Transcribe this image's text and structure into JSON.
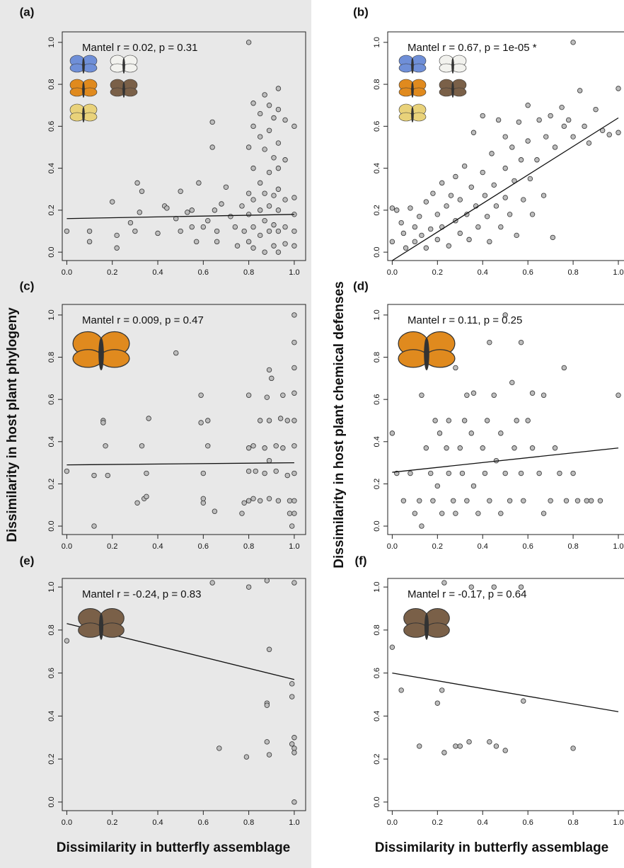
{
  "chart_data": [
    {
      "type": "scatter",
      "panel": "(a)",
      "annotation": "Mantel r = 0.02, p = 0.31",
      "ylabel": "Dissimilarity in host plant phylogeny",
      "x": [
        0,
        0.1,
        0.1,
        0.2,
        0.22,
        0.22,
        0.28,
        0.3,
        0.31,
        0.32,
        0.33,
        0.4,
        0.43,
        0.44,
        0.48,
        0.5,
        0.5,
        0.53,
        0.55,
        0.55,
        0.57,
        0.58,
        0.6,
        0.62,
        0.64,
        0.64,
        0.65,
        0.66,
        0.66,
        0.68,
        0.7,
        0.72,
        0.74,
        0.75,
        0.77,
        0.78,
        0.8,
        0.8,
        0.8,
        0.8,
        0.8,
        0.82,
        0.82,
        0.82,
        0.82,
        0.82,
        0.82,
        0.85,
        0.85,
        0.85,
        0.85,
        0.85,
        0.87,
        0.87,
        0.87,
        0.87,
        0.87,
        0.89,
        0.89,
        0.89,
        0.89,
        0.89,
        0.91,
        0.91,
        0.91,
        0.91,
        0.91,
        0.93,
        0.93,
        0.93,
        0.93,
        0.93,
        0.93,
        0.93,
        0.93,
        0.96,
        0.96,
        0.96,
        0.96,
        0.96,
        1,
        1,
        1,
        1,
        1
      ],
      "y": [
        0.1,
        0.1,
        0.05,
        0.24,
        0.08,
        0.02,
        0.14,
        0.1,
        0.33,
        0.19,
        0.29,
        0.09,
        0.22,
        0.21,
        0.16,
        0.29,
        0.1,
        0.19,
        0.2,
        0.12,
        0.05,
        0.33,
        0.12,
        0.15,
        0.62,
        0.5,
        0.2,
        0.1,
        0.05,
        0.23,
        0.31,
        0.17,
        0.12,
        0.03,
        0.22,
        0.1,
        1,
        0.5,
        0.28,
        0.18,
        0.05,
        0.71,
        0.6,
        0.4,
        0.25,
        0.12,
        0.02,
        0.66,
        0.55,
        0.33,
        0.2,
        0.08,
        0.75,
        0.49,
        0.28,
        0.15,
        0,
        0.7,
        0.58,
        0.38,
        0.22,
        0.1,
        0.64,
        0.45,
        0.27,
        0.13,
        0.03,
        0.78,
        0.68,
        0.52,
        0.4,
        0.3,
        0.2,
        0.1,
        0,
        0.63,
        0.44,
        0.25,
        0.12,
        0.04,
        0.6,
        0.26,
        0.18,
        0.1,
        0.03
      ],
      "fit": {
        "x": [
          0,
          1
        ],
        "y": [
          0.16,
          0.18
        ]
      },
      "xlim": [
        -0.02,
        1.05
      ],
      "ylim": [
        -0.04,
        1.05
      ],
      "xticks": [
        {
          "value": 0,
          "label": "0.0"
        },
        0.2,
        0.4,
        0.6,
        0.8,
        {
          "value": 1,
          "label": "1.0"
        }
      ],
      "yticks": [
        {
          "value": 0,
          "label": "0.0"
        },
        0.2,
        0.4,
        0.6,
        0.8,
        {
          "value": 1,
          "label": "1.0"
        }
      ]
    },
    {
      "type": "scatter",
      "panel": "(b)",
      "annotation": "Mantel r = 0.67, p = 1e-05 *",
      "ylabel": "Dissimilarity in host plant chemical defenses",
      "x": [
        0,
        0,
        0.02,
        0.04,
        0.05,
        0.06,
        0.08,
        0.1,
        0.1,
        0.12,
        0.13,
        0.15,
        0.15,
        0.17,
        0.18,
        0.2,
        0.2,
        0.22,
        0.22,
        0.24,
        0.25,
        0.26,
        0.28,
        0.28,
        0.3,
        0.3,
        0.32,
        0.33,
        0.34,
        0.35,
        0.36,
        0.37,
        0.38,
        0.4,
        0.4,
        0.41,
        0.42,
        0.43,
        0.44,
        0.45,
        0.46,
        0.47,
        0.48,
        0.5,
        0.5,
        0.5,
        0.52,
        0.53,
        0.54,
        0.55,
        0.56,
        0.57,
        0.58,
        0.6,
        0.6,
        0.61,
        0.62,
        0.64,
        0.65,
        0.67,
        0.68,
        0.7,
        0.71,
        0.72,
        0.75,
        0.76,
        0.78,
        0.8,
        0.8,
        0.83,
        0.85,
        0.87,
        0.9,
        0.93,
        0.96,
        1,
        1
      ],
      "y": [
        0.05,
        0.21,
        0.2,
        0.14,
        0.09,
        0.02,
        0.21,
        0.05,
        0.12,
        0.17,
        0.08,
        0.24,
        0.02,
        0.11,
        0.28,
        0.06,
        0.18,
        0.33,
        0.12,
        0.22,
        0.03,
        0.27,
        0.15,
        0.36,
        0.09,
        0.25,
        0.41,
        0.18,
        0.06,
        0.31,
        0.57,
        0.22,
        0.12,
        0.65,
        0.38,
        0.27,
        0.17,
        0.05,
        0.47,
        0.32,
        0.22,
        0.63,
        0.12,
        0.55,
        0.4,
        0.26,
        0.18,
        0.5,
        0.34,
        0.08,
        0.62,
        0.44,
        0.25,
        0.7,
        0.53,
        0.35,
        0.18,
        0.44,
        0.63,
        0.27,
        0.55,
        0.65,
        0.07,
        0.5,
        0.69,
        0.6,
        0.63,
        1,
        0.55,
        0.77,
        0.6,
        0.52,
        0.68,
        0.58,
        0.56,
        0.78,
        0.57
      ],
      "fit": {
        "x": [
          0,
          1
        ],
        "y": [
          -0.04,
          0.64
        ]
      },
      "xlim": [
        -0.02,
        1.05
      ],
      "ylim": [
        -0.04,
        1.05
      ],
      "xticks": [
        {
          "value": 0,
          "label": "0.0"
        },
        0.2,
        0.4,
        0.6,
        0.8,
        {
          "value": 1,
          "label": "1.0"
        }
      ],
      "yticks": [
        {
          "value": 0,
          "label": "0.0"
        },
        0.2,
        0.4,
        0.6,
        0.8,
        {
          "value": 1,
          "label": "1.0"
        }
      ]
    },
    {
      "type": "scatter",
      "panel": "(c)",
      "annotation": "Mantel r = 0.009, p = 0.47",
      "x": [
        0,
        0.12,
        0.12,
        0.16,
        0.16,
        0.17,
        0.18,
        0.31,
        0.33,
        0.34,
        0.35,
        0.35,
        0.36,
        0.48,
        0.59,
        0.59,
        0.6,
        0.6,
        0.6,
        0.62,
        0.62,
        0.65,
        0.77,
        0.78,
        0.8,
        0.8,
        0.8,
        0.8,
        0.82,
        0.82,
        0.83,
        0.85,
        0.85,
        0.87,
        0.87,
        0.88,
        0.89,
        0.89,
        0.89,
        0.89,
        0.9,
        0.92,
        0.92,
        0.93,
        0.94,
        0.95,
        0.95,
        0.97,
        0.97,
        0.98,
        0.98,
        0.99,
        1,
        1,
        1,
        1,
        1,
        1,
        1,
        1,
        1
      ],
      "y": [
        0.26,
        0.24,
        0,
        0.5,
        0.49,
        0.38,
        0.24,
        0.11,
        0.38,
        0.13,
        0.25,
        0.14,
        0.51,
        0.82,
        0.62,
        0.49,
        0.25,
        0.11,
        0.13,
        0.5,
        0.38,
        0.07,
        0.06,
        0.11,
        0.62,
        0.37,
        0.26,
        0.12,
        0.38,
        0.13,
        0.26,
        0.5,
        0.12,
        0.37,
        0.25,
        0.61,
        0.74,
        0.5,
        0.31,
        0.13,
        0.7,
        0.26,
        0.38,
        0.12,
        0.51,
        0.62,
        0.37,
        0.5,
        0.24,
        0.12,
        0.06,
        0,
        1,
        0.87,
        0.75,
        0.63,
        0.5,
        0.38,
        0.25,
        0.12,
        0.06
      ],
      "fit": {
        "x": [
          0,
          1
        ],
        "y": [
          0.29,
          0.3
        ]
      },
      "xlim": [
        -0.02,
        1.05
      ],
      "ylim": [
        -0.04,
        1.05
      ],
      "xticks": [
        {
          "value": 0,
          "label": "0.0"
        },
        0.2,
        0.4,
        0.6,
        0.8,
        {
          "value": 1,
          "label": "1.0"
        }
      ],
      "yticks": [
        {
          "value": 0,
          "label": "0.0"
        },
        0.2,
        0.4,
        0.6,
        0.8,
        {
          "value": 1,
          "label": "1.0"
        }
      ]
    },
    {
      "type": "scatter",
      "panel": "(d)",
      "annotation": "Mantel r = 0.11, p = 0.25",
      "x": [
        0,
        0.02,
        0.05,
        0.08,
        0.1,
        0.12,
        0.13,
        0.13,
        0.15,
        0.17,
        0.18,
        0.19,
        0.2,
        0.21,
        0.22,
        0.24,
        0.25,
        0.25,
        0.27,
        0.28,
        0.28,
        0.3,
        0.31,
        0.32,
        0.33,
        0.33,
        0.35,
        0.36,
        0.36,
        0.38,
        0.4,
        0.41,
        0.42,
        0.43,
        0.43,
        0.45,
        0.46,
        0.48,
        0.48,
        0.5,
        0.5,
        0.52,
        0.53,
        0.54,
        0.55,
        0.57,
        0.57,
        0.58,
        0.6,
        0.62,
        0.62,
        0.65,
        0.67,
        0.67,
        0.7,
        0.72,
        0.74,
        0.76,
        0.77,
        0.8,
        0.82,
        0.86,
        0.88,
        0.92,
        1
      ],
      "y": [
        0.44,
        0.25,
        0.12,
        0.25,
        0.06,
        0.12,
        0.62,
        0,
        0.37,
        0.25,
        0.12,
        0.5,
        0.19,
        0.44,
        0.06,
        0.37,
        0.25,
        0.5,
        0.12,
        0.75,
        0.06,
        0.37,
        0.25,
        0.5,
        0.62,
        0.12,
        0.44,
        0.63,
        0.19,
        0.06,
        0.37,
        0.25,
        0.5,
        0.87,
        0.12,
        0.62,
        0.31,
        0.44,
        0.06,
        1,
        0.25,
        0.12,
        0.68,
        0.37,
        0.5,
        0.87,
        0.25,
        0.12,
        0.5,
        0.63,
        0.37,
        0.25,
        0.62,
        0.06,
        0.12,
        0.37,
        0.25,
        0.75,
        0.12,
        0.25,
        0.12,
        0.12,
        0.12,
        0.12,
        0.62
      ],
      "fit": {
        "x": [
          0,
          1
        ],
        "y": [
          0.255,
          0.37
        ]
      },
      "xlim": [
        -0.02,
        1.05
      ],
      "ylim": [
        -0.04,
        1.05
      ],
      "xticks": [
        {
          "value": 0,
          "label": "0.0"
        },
        0.2,
        0.4,
        0.6,
        0.8,
        {
          "value": 1,
          "label": "1.0"
        }
      ],
      "yticks": [
        {
          "value": 0,
          "label": "0.0"
        },
        0.2,
        0.4,
        0.6,
        0.8,
        {
          "value": 1,
          "label": "1.0"
        }
      ]
    },
    {
      "type": "scatter",
      "panel": "(e)",
      "annotation": "Mantel r = -0.24, p = 0.83",
      "xlabel": "Dissimilarity in butterfly assemblage",
      "x": [
        0,
        0.64,
        0.8,
        0.88,
        0.89,
        0.67,
        0.79,
        0.88,
        0.88,
        0.88,
        0.89,
        1,
        0.99,
        0.99,
        1,
        0.99,
        1,
        1,
        1
      ],
      "y": [
        0.75,
        1.02,
        1,
        1.03,
        0.71,
        0.25,
        0.21,
        0.46,
        0.45,
        0.28,
        0.22,
        1.02,
        0.55,
        0.49,
        0.3,
        0.27,
        0.25,
        0.23,
        0
      ],
      "fit": {
        "x": [
          0,
          1
        ],
        "y": [
          0.83,
          0.57
        ]
      },
      "xlim": [
        -0.02,
        1.05
      ],
      "ylim": [
        -0.04,
        1.04
      ],
      "xticks": [
        {
          "value": 0,
          "label": "0.0"
        },
        0.2,
        0.4,
        0.6,
        0.8,
        {
          "value": 1,
          "label": "1.0"
        }
      ],
      "yticks": [
        {
          "value": 0,
          "label": "0.0"
        },
        0.2,
        0.4,
        0.6,
        0.8,
        {
          "value": 1,
          "label": "1.0"
        }
      ]
    },
    {
      "type": "scatter",
      "panel": "(f)",
      "annotation": "Mantel r = -0.17, p = 0.64",
      "xlabel": "Dissimilarity in butterfly assemblage",
      "x": [
        0,
        0.04,
        0.2,
        0.22,
        0.12,
        0.23,
        0.28,
        0.3,
        0.34,
        0.43,
        0.46,
        0.5,
        0.58,
        0.8,
        0.23,
        0.45,
        0.57,
        0.35
      ],
      "y": [
        0.72,
        0.52,
        0.46,
        0.52,
        0.26,
        0.23,
        0.26,
        0.26,
        0.28,
        0.28,
        0.26,
        0.24,
        0.47,
        0.25,
        1.02,
        1,
        1,
        1
      ],
      "fit": {
        "x": [
          0,
          1
        ],
        "y": [
          0.6,
          0.42
        ]
      },
      "xlim": [
        -0.02,
        1.05
      ],
      "ylim": [
        -0.04,
        1.04
      ],
      "xticks": [
        {
          "value": 0,
          "label": "0.0"
        },
        0.2,
        0.4,
        0.6,
        0.8,
        {
          "value": 1,
          "label": "1.0"
        }
      ],
      "yticks": [
        {
          "value": 0,
          "label": "0.0"
        },
        0.2,
        0.4,
        0.6,
        0.8,
        {
          "value": 1,
          "label": "1.0"
        }
      ]
    }
  ]
}
